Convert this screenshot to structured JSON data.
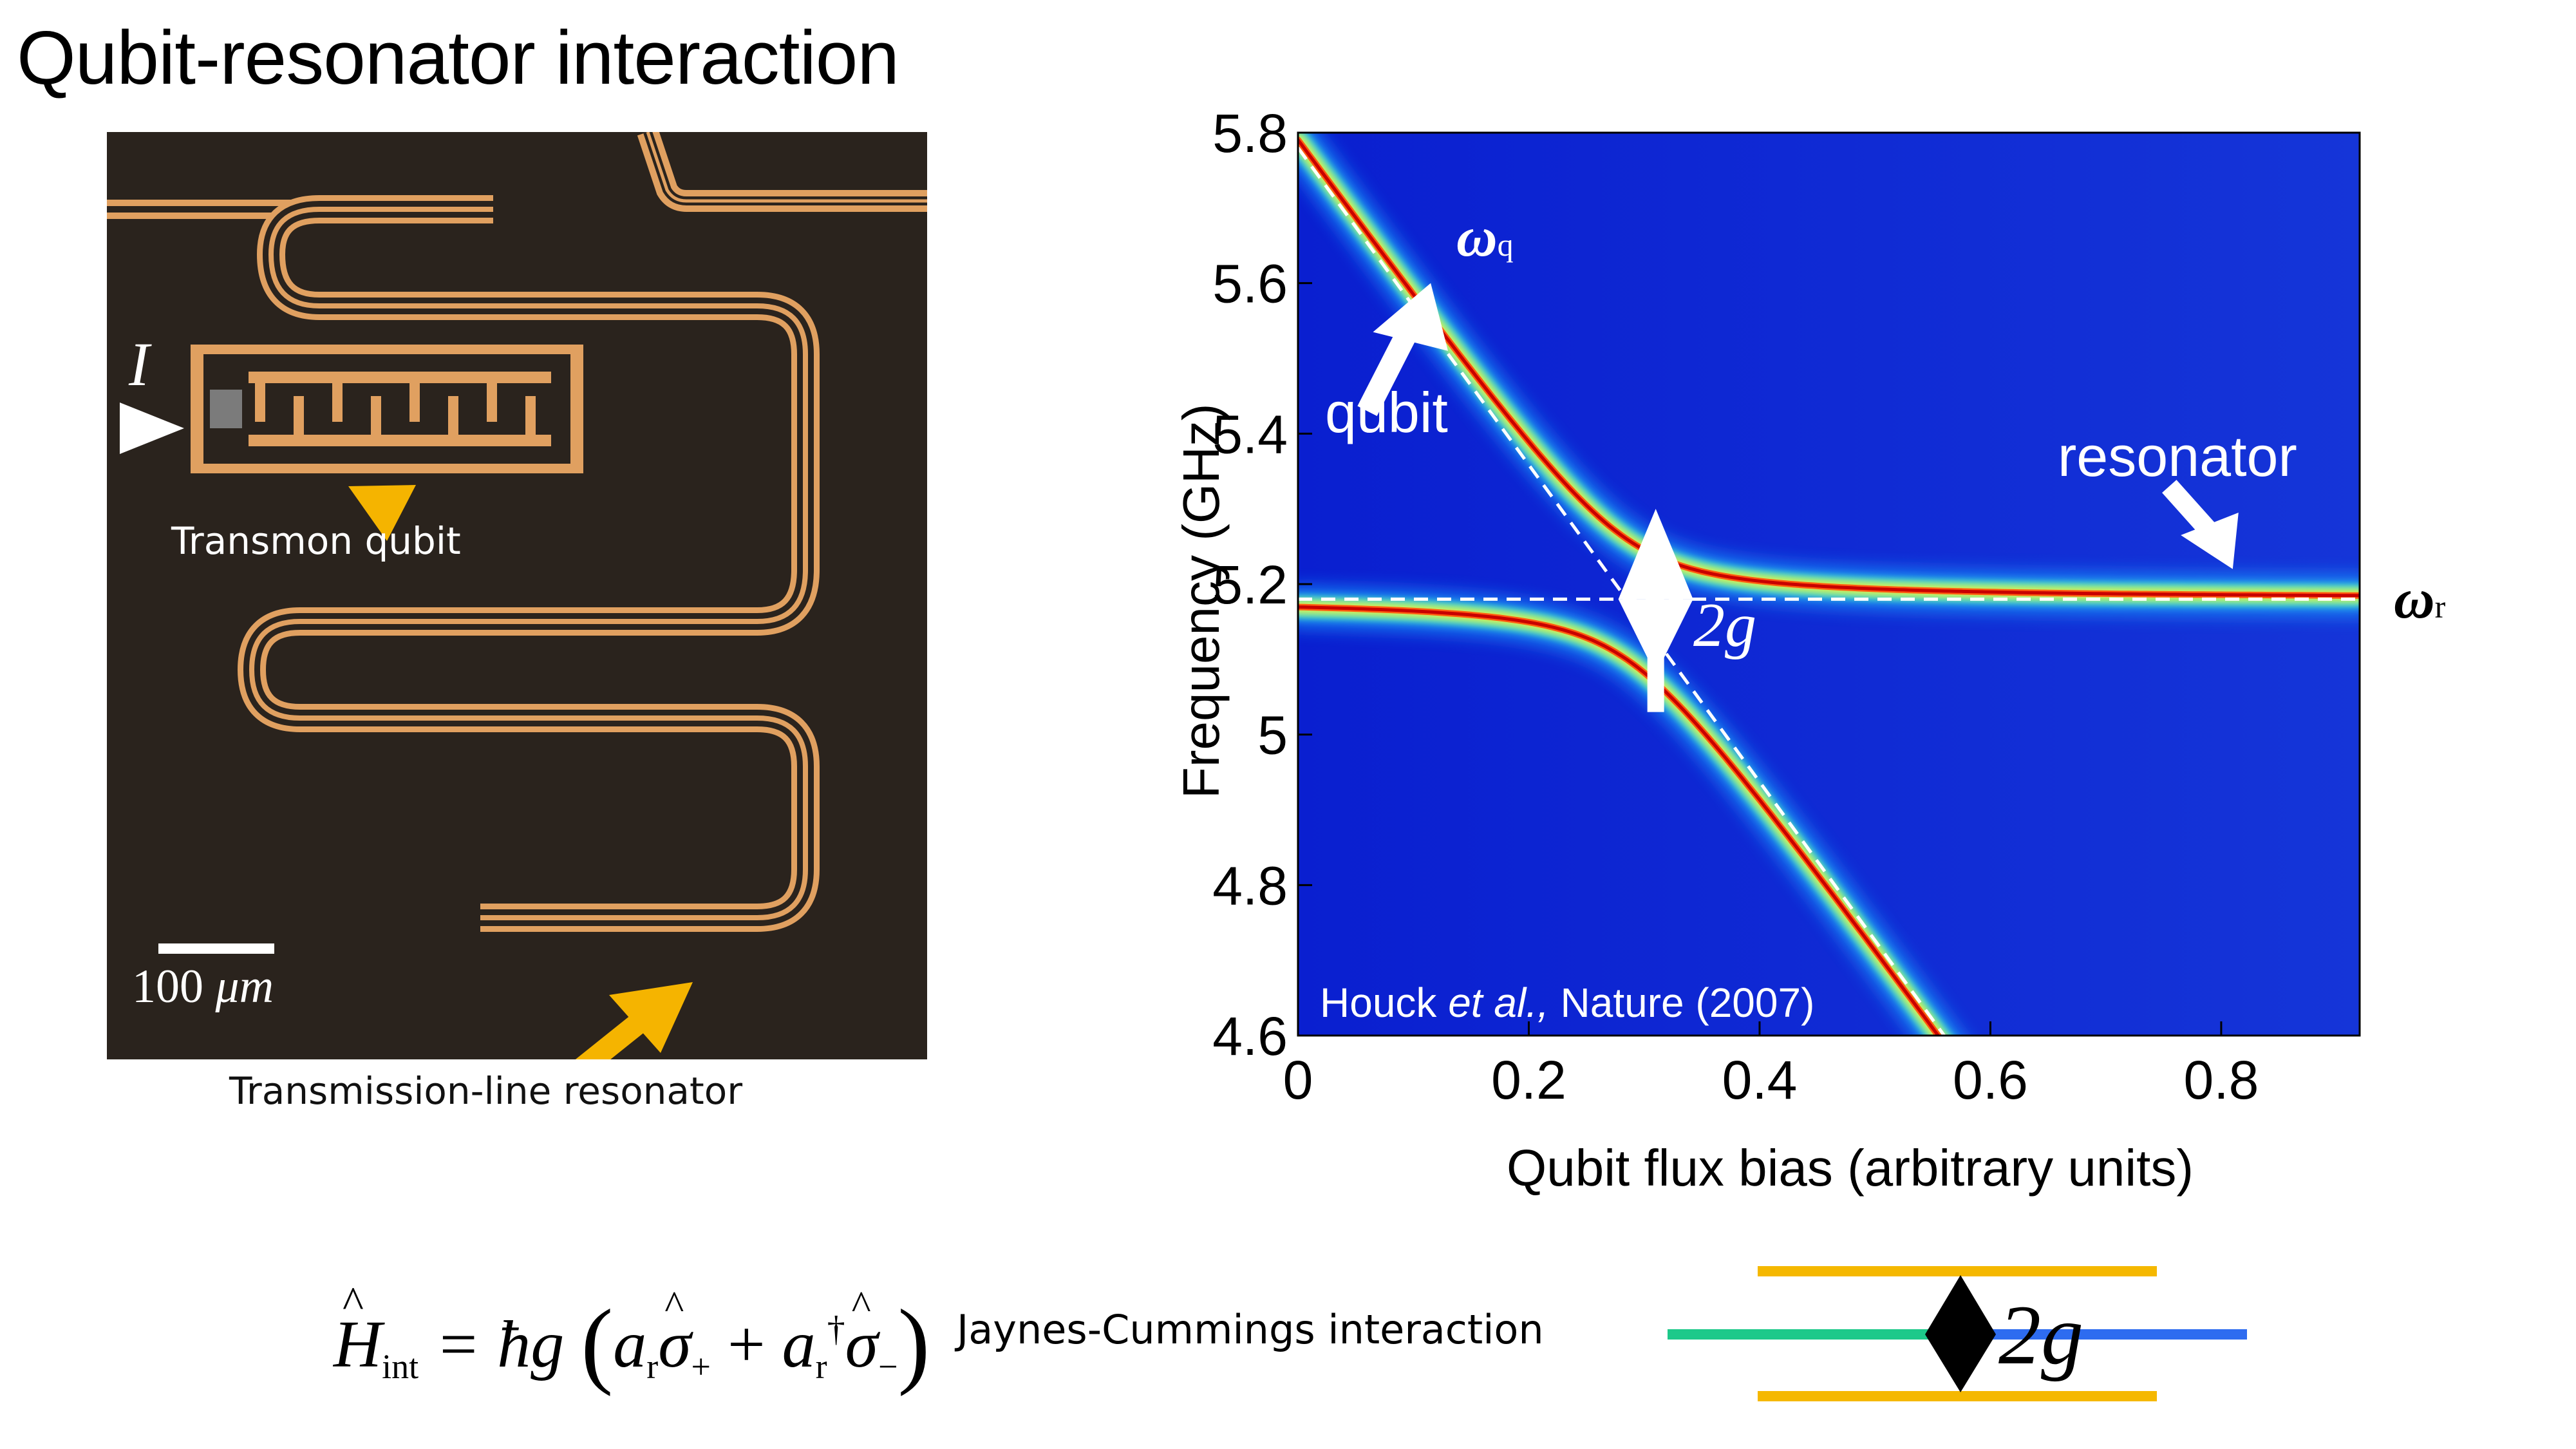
{
  "slide": {
    "title": "Qubit-resonator interaction"
  },
  "device": {
    "current_label": "I",
    "qubit_caption": "Transmon qubit",
    "resonator_caption": "Transmission-line resonator",
    "scalebar_value": "100",
    "scalebar_unit": "μm",
    "colors": {
      "metal": "#e0a060",
      "substrate": "#2a231d",
      "pointer": "#f5b400"
    }
  },
  "chart_data": {
    "type": "heatmap",
    "xlabel": "Qubit flux bias (arbitrary units)",
    "ylabel": "Frequency (GHz)",
    "xlim": [
      0,
      0.92
    ],
    "ylim": [
      4.6,
      5.8
    ],
    "xticks": [
      0,
      0.2,
      0.4,
      0.6,
      0.8
    ],
    "xtick_labels": [
      "0",
      "0.2",
      "0.4",
      "0.6",
      "0.8"
    ],
    "yticks": [
      4.6,
      4.8,
      5.0,
      5.2,
      5.4,
      5.6,
      5.8
    ],
    "ytick_labels": [
      "4.6",
      "4.8",
      "5",
      "5.2",
      "5.4",
      "5.6",
      "5.8"
    ],
    "resonator_frequency": 5.18,
    "coupling_g": 0.08,
    "qubit_frequency_line": {
      "x": [
        0,
        0.56
      ],
      "y": [
        5.78,
        4.6
      ]
    },
    "colormap": "jet",
    "annotations": {
      "omega_q": "ω",
      "omega_q_sub": "q",
      "omega_r": "ω",
      "omega_r_sub": "r",
      "two_g": "2g",
      "qubit": "qubit",
      "resonator": "resonator",
      "citation_author": "Houck ",
      "citation_etal": "et al.,",
      "citation_rest": " Nature (2007)"
    }
  },
  "equation": {
    "H": "H",
    "H_sub": "int",
    "equals": "= ħg",
    "a1": "a",
    "a1_sub": "r",
    "sigma1": "σ",
    "sigma1_sub": "+",
    "plus": "+",
    "a2": "a",
    "a2_sub": "r",
    "dagger": "†",
    "sigma2": "σ",
    "sigma2_sub": "−",
    "label": "Jaynes-Cummings interaction"
  },
  "level_diagram": {
    "label": "2g",
    "colors": {
      "split_levels": "#f5b800",
      "qubit_level": "#1dc98a",
      "resonator_level": "#2e6cf0",
      "arrow": "#000000"
    }
  }
}
